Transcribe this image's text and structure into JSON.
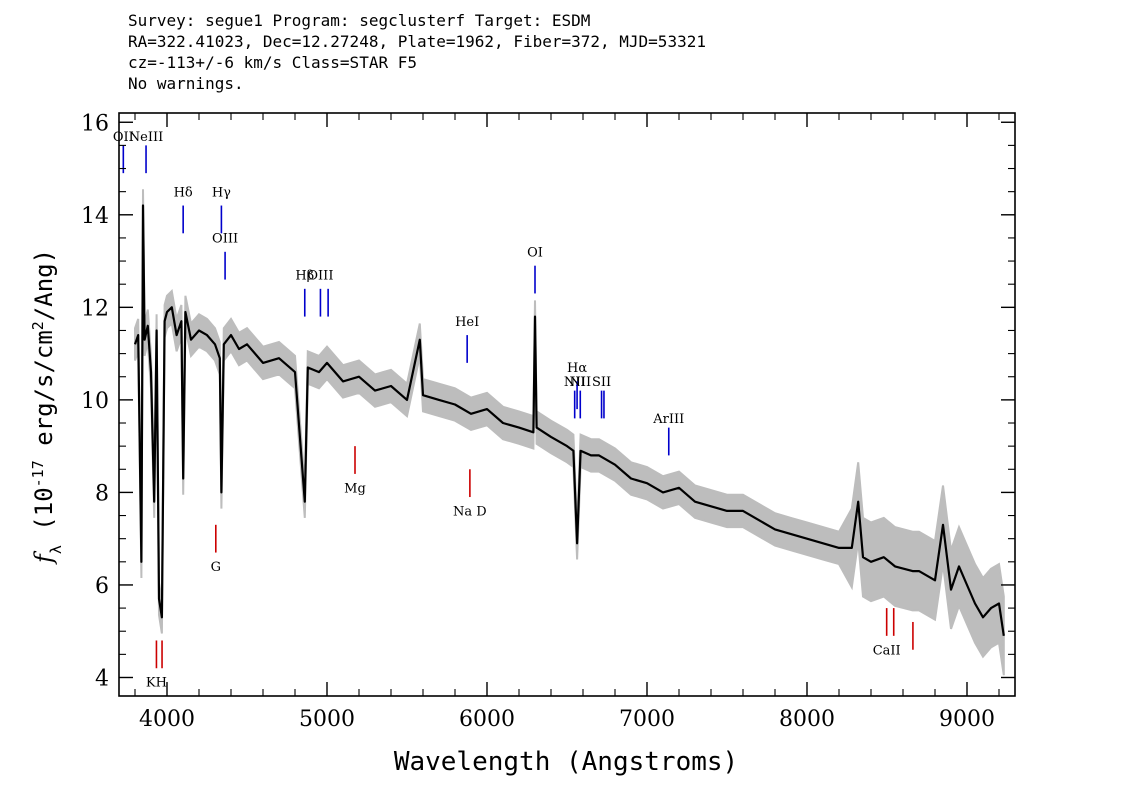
{
  "header": {
    "line1": "Survey: segue1 Program: segclusterf Target: ESDM",
    "line2": "RA=322.41023, Dec=12.27248, Plate=1962, Fiber=372, MJD=53321",
    "line3": "cz=-113+/-6 km/s Class=STAR F5",
    "line4": "No warnings."
  },
  "chart_data": {
    "type": "line",
    "xlabel": "Wavelength (Angstroms)",
    "ylabel": "f_λ (10^-17 erg/s/cm^2/Ang)",
    "xlim": [
      3700,
      9300
    ],
    "ylim": [
      3.6,
      16.2
    ],
    "x_ticks": [
      4000,
      5000,
      6000,
      7000,
      8000,
      9000
    ],
    "y_ticks": [
      4,
      6,
      8,
      10,
      12,
      14,
      16
    ],
    "colors": {
      "flux": "#000000",
      "error_band": "#bdbdbd",
      "emission": "#0000cc",
      "absorption": "#cc0000"
    },
    "series": [
      {
        "values_x": [
          3800,
          3820,
          3840,
          3850,
          3860,
          3880,
          3900,
          3920,
          3935,
          3950,
          3968,
          3985,
          4000,
          4030,
          4060,
          4090,
          4101,
          4115,
          4150,
          4200,
          4250,
          4300,
          4330,
          4340,
          4355,
          4400,
          4450,
          4500,
          4600,
          4700,
          4800,
          4861,
          4880,
          4950,
          5000,
          5100,
          5200,
          5300,
          5400,
          5500,
          5580,
          5600,
          5700,
          5800,
          5900,
          6000,
          6100,
          6200,
          6290,
          6300,
          6310,
          6400,
          6500,
          6540,
          6563,
          6585,
          6650,
          6700,
          6800,
          6900,
          7000,
          7100,
          7200,
          7300,
          7400,
          7500,
          7600,
          7700,
          7800,
          7900,
          8000,
          8100,
          8200,
          8280,
          8320,
          8350,
          8400,
          8480,
          8550,
          8660,
          8700,
          8800,
          8850,
          8900,
          8950,
          9000,
          9050,
          9100,
          9150,
          9200,
          9230
        ],
        "values_y": [
          11.2,
          11.4,
          6.5,
          14.2,
          11.3,
          11.6,
          10.6,
          7.8,
          11.5,
          5.7,
          5.3,
          11.7,
          11.9,
          12.0,
          11.4,
          11.7,
          8.3,
          11.9,
          11.3,
          11.5,
          11.4,
          11.2,
          10.9,
          8.0,
          11.2,
          11.4,
          11.1,
          11.2,
          10.8,
          10.9,
          10.6,
          7.8,
          10.7,
          10.6,
          10.8,
          10.4,
          10.5,
          10.2,
          10.3,
          10.0,
          11.3,
          10.1,
          10.0,
          9.9,
          9.7,
          9.8,
          9.5,
          9.4,
          9.3,
          11.8,
          9.4,
          9.2,
          9.0,
          8.9,
          6.9,
          8.9,
          8.8,
          8.8,
          8.6,
          8.3,
          8.2,
          8.0,
          8.1,
          7.8,
          7.7,
          7.6,
          7.6,
          7.4,
          7.2,
          7.1,
          7.0,
          6.9,
          6.8,
          6.8,
          7.8,
          6.6,
          6.5,
          6.6,
          6.4,
          6.3,
          6.3,
          6.1,
          7.3,
          5.9,
          6.4,
          6.0,
          5.6,
          5.3,
          5.5,
          5.6,
          4.9
        ]
      }
    ],
    "line_markers": [
      {
        "label": "OII",
        "x": 3727,
        "y1": 14.9,
        "y2": 15.5,
        "color": "#0000cc",
        "label_y": 15.6
      },
      {
        "label": "NeIII",
        "x": 3869,
        "y1": 14.9,
        "y2": 15.5,
        "color": "#0000cc",
        "label_y": 15.6
      },
      {
        "label": "Hδ",
        "x": 4101,
        "y1": 13.6,
        "y2": 14.2,
        "color": "#0000cc",
        "label_y": 14.4
      },
      {
        "label": "Hγ",
        "x": 4340,
        "y1": 13.6,
        "y2": 14.2,
        "color": "#0000cc",
        "label_y": 14.4
      },
      {
        "label": "OIII",
        "x": 4363,
        "y1": 12.6,
        "y2": 13.2,
        "color": "#0000cc",
        "label_y": 13.4
      },
      {
        "label": "Hβ",
        "x": 4861,
        "y1": 11.8,
        "y2": 12.4,
        "color": "#0000cc",
        "label_y": 12.6
      },
      {
        "label": "OIII",
        "x": 4959,
        "y1": 11.8,
        "y2": 12.4,
        "color": "#0000cc",
        "label_y": 12.6
      },
      {
        "label": "",
        "x": 5007,
        "y1": 11.8,
        "y2": 12.4,
        "color": "#0000cc",
        "label_y": 12.6
      },
      {
        "label": "HeI",
        "x": 5876,
        "y1": 10.8,
        "y2": 11.4,
        "color": "#0000cc",
        "label_y": 11.6
      },
      {
        "label": "OI",
        "x": 6300,
        "y1": 12.3,
        "y2": 12.9,
        "color": "#0000cc",
        "label_y": 13.1
      },
      {
        "label": "NII",
        "x": 6548,
        "y1": 9.6,
        "y2": 10.2,
        "color": "#0000cc",
        "label_y": 10.3
      },
      {
        "label": "Hα",
        "x": 6563,
        "y1": 9.8,
        "y2": 10.4,
        "color": "#0000cc",
        "label_y": 10.6
      },
      {
        "label": "NII",
        "x": 6583,
        "y1": 9.6,
        "y2": 10.2,
        "color": "#0000cc",
        "label_y": 10.3
      },
      {
        "label": "SII",
        "x": 6716,
        "y1": 9.6,
        "y2": 10.2,
        "color": "#0000cc",
        "label_y": 10.3
      },
      {
        "label": "",
        "x": 6731,
        "y1": 9.6,
        "y2": 10.2,
        "color": "#0000cc",
        "label_y": 10.3
      },
      {
        "label": "ArIII",
        "x": 7136,
        "y1": 8.8,
        "y2": 9.4,
        "color": "#0000cc",
        "label_y": 9.5
      },
      {
        "label": "KH",
        "x": 3934,
        "y1": 4.2,
        "y2": 4.8,
        "color": "#cc0000",
        "label_y": 3.8
      },
      {
        "label": "",
        "x": 3969,
        "y1": 4.2,
        "y2": 4.8,
        "color": "#cc0000",
        "label_y": 3.8
      },
      {
        "label": "G",
        "x": 4305,
        "y1": 6.7,
        "y2": 7.3,
        "color": "#cc0000",
        "label_y": 6.3
      },
      {
        "label": "Mg",
        "x": 5175,
        "y1": 8.4,
        "y2": 9.0,
        "color": "#cc0000",
        "label_y": 8.0
      },
      {
        "label": "Na D",
        "x": 5893,
        "y1": 7.9,
        "y2": 8.5,
        "color": "#cc0000",
        "label_y": 7.5
      },
      {
        "label": "CaII",
        "x": 8498,
        "y1": 4.9,
        "y2": 5.5,
        "color": "#cc0000",
        "label_y": 4.5
      },
      {
        "label": "",
        "x": 8542,
        "y1": 4.9,
        "y2": 5.5,
        "color": "#cc0000",
        "label_y": 4.5
      },
      {
        "label": "",
        "x": 8662,
        "y1": 4.6,
        "y2": 5.2,
        "color": "#cc0000",
        "label_y": 4.5
      }
    ]
  }
}
